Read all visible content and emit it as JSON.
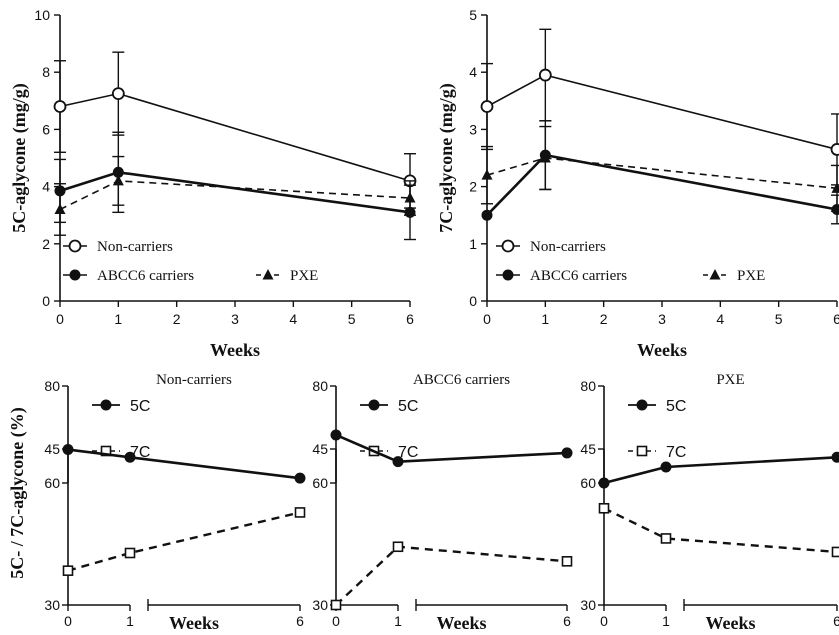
{
  "chart_data": [
    {
      "type": "line",
      "ylabel": "5C-aglycone (mg/g)",
      "xlabel": "Weeks",
      "ylim": [
        0,
        10
      ],
      "yticks": [
        0,
        2,
        4,
        6,
        8,
        10
      ],
      "xlim": [
        0,
        6
      ],
      "xticks": [
        0,
        1,
        2,
        3,
        4,
        5,
        6
      ],
      "x": [
        0,
        1,
        6
      ],
      "series": [
        {
          "name": "Non-carriers",
          "marker": "open-circle",
          "dash": "solid",
          "values": [
            6.8,
            7.25,
            4.2
          ],
          "errors": [
            1.6,
            1.45,
            0.95
          ]
        },
        {
          "name": "ABCC6 carriers",
          "marker": "filled-circle",
          "dash": "solid",
          "values": [
            3.85,
            4.5,
            3.1
          ],
          "errors": [
            1.1,
            1.4,
            0.95
          ]
        },
        {
          "name": "PXE",
          "marker": "filled-triangle",
          "dash": "dashed",
          "values": [
            3.2,
            4.2,
            3.6
          ],
          "errors": [
            0.9,
            0.85,
            0.6
          ]
        }
      ],
      "legend": [
        {
          "label": "Non-carriers"
        },
        {
          "label": "ABCC6 carriers"
        },
        {
          "label": "PXE"
        }
      ]
    },
    {
      "type": "line",
      "ylabel": "7C-aglycone (mg/g)",
      "xlabel": "Weeks",
      "ylim": [
        0,
        5
      ],
      "yticks": [
        0,
        1,
        2,
        3,
        4,
        5
      ],
      "xlim": [
        0,
        6
      ],
      "xticks": [
        0,
        1,
        2,
        3,
        4,
        5,
        6
      ],
      "x": [
        0,
        1,
        6
      ],
      "series": [
        {
          "name": "Non-carriers",
          "marker": "open-circle",
          "dash": "solid",
          "values": [
            3.4,
            3.95,
            2.65
          ],
          "errors": [
            0.75,
            0.8,
            0.62
          ]
        },
        {
          "name": "ABCC6 carriers",
          "marker": "filled-circle",
          "dash": "solid",
          "values": [
            1.5,
            2.55,
            1.6
          ],
          "errors": [
            0.0,
            0.6,
            0.25
          ]
        },
        {
          "name": "PXE",
          "marker": "filled-triangle",
          "dash": "dashed",
          "values": [
            2.2,
            2.5,
            1.97
          ],
          "errors": [
            0.5,
            0.55,
            0.4
          ]
        }
      ],
      "legend": [
        {
          "label": "Non-carriers"
        },
        {
          "label": "ABCC6 carriers"
        },
        {
          "label": "PXE"
        }
      ]
    },
    {
      "type": "line",
      "title": "Non-carriers",
      "xlabel": "Weeks",
      "ylabel": "5C- / 7C-aglycone (%)",
      "x": [
        0,
        1,
        6
      ],
      "xticks": [
        0,
        1,
        6
      ],
      "series": [
        {
          "name": "5C",
          "marker": "filled-circle",
          "dash": "solid",
          "ylim": [
            60,
            80
          ],
          "yticks": [
            60,
            80
          ],
          "values": [
            66.9,
            65.3,
            61.0
          ]
        },
        {
          "name": "7C",
          "marker": "open-square",
          "dash": "dashed",
          "ylim": [
            30,
            45
          ],
          "yticks": [
            30,
            45
          ],
          "values": [
            33.3,
            35.0,
            38.9
          ]
        }
      ]
    },
    {
      "type": "line",
      "title": "ABCC6 carriers",
      "xlabel": "Weeks",
      "x": [
        0,
        1,
        6
      ],
      "xticks": [
        0,
        1,
        6
      ],
      "series": [
        {
          "name": "5C",
          "marker": "filled-circle",
          "dash": "solid",
          "ylim": [
            60,
            80
          ],
          "yticks": [
            60,
            80
          ],
          "values": [
            69.9,
            64.4,
            66.2
          ]
        },
        {
          "name": "7C",
          "marker": "open-square",
          "dash": "dashed",
          "ylim": [
            30,
            45
          ],
          "yticks": [
            30,
            45
          ],
          "values": [
            30.0,
            35.6,
            34.2
          ]
        }
      ]
    },
    {
      "type": "line",
      "title": "PXE",
      "xlabel": "Weeks",
      "x": [
        0,
        1,
        6
      ],
      "xticks": [
        0,
        1,
        6
      ],
      "series": [
        {
          "name": "5C",
          "marker": "filled-circle",
          "dash": "solid",
          "ylim": [
            60,
            80
          ],
          "yticks": [
            60,
            80
          ],
          "values": [
            60.0,
            63.3,
            65.3
          ]
        },
        {
          "name": "7C",
          "marker": "open-square",
          "dash": "dashed",
          "ylim": [
            30,
            45
          ],
          "yticks": [
            30,
            45
          ],
          "values": [
            39.3,
            36.4,
            35.1
          ]
        }
      ]
    }
  ]
}
